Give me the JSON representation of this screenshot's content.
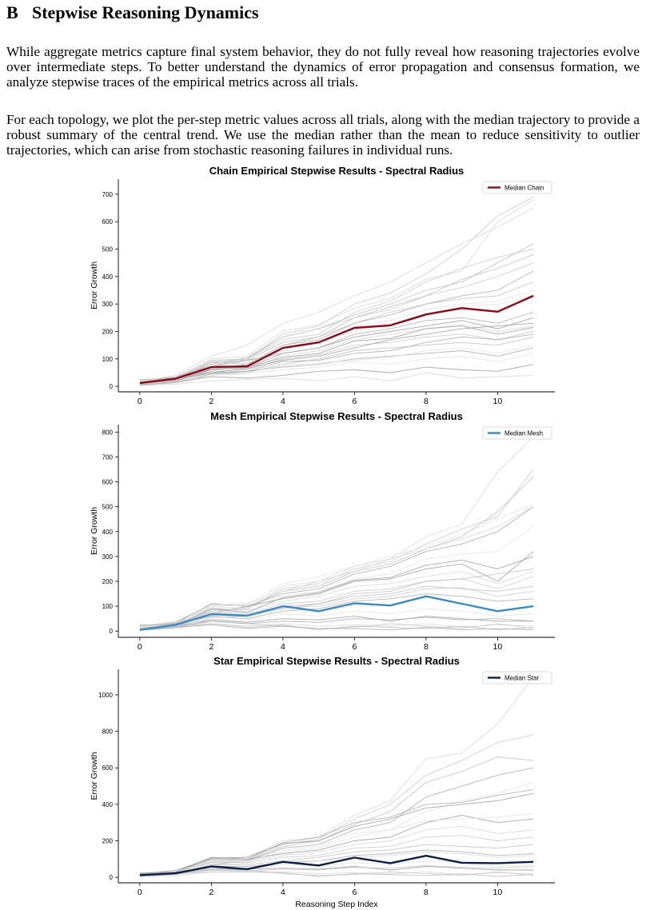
{
  "section": {
    "number": "B",
    "title": "Stepwise Reasoning Dynamics"
  },
  "paragraphs": [
    "While aggregate metrics capture final system behavior, they do not fully reveal how reasoning trajectories evolve over intermediate steps. To better understand the dynamics of error propagation and consensus formation, we analyze stepwise traces of the empirical metrics across all trials.",
    "For each topology, we plot the per-step metric values across all trials, along with the median trajectory to provide a robust summary of the central trend. We use the median rather than the mean to reduce sensitivity to outlier trajectories, which can arise from stochastic reasoning failures in individual runs."
  ],
  "chart_data": [
    {
      "type": "line",
      "title": "Chain Empirical Stepwise Results - Spectral Radius",
      "xlabel": "",
      "ylabel": "Error Growth",
      "x": [
        0,
        1,
        2,
        3,
        4,
        5,
        6,
        7,
        8,
        9,
        10,
        11
      ],
      "xticks": [
        0,
        2,
        4,
        6,
        8,
        10
      ],
      "xlim": [
        -0.6,
        11.6
      ],
      "yticks": [
        0,
        100,
        200,
        300,
        400,
        500,
        600,
        700
      ],
      "ylim": [
        -20,
        755
      ],
      "grid": false,
      "legend": "top-right",
      "median": {
        "name": "Median Chain",
        "color": "#8b0a1a",
        "values": [
          12,
          28,
          70,
          73,
          140,
          160,
          213,
          222,
          262,
          285,
          272,
          330
        ]
      },
      "trial_series": [
        [
          5,
          25,
          100,
          110,
          200,
          225,
          285,
          320,
          390,
          420,
          600,
          680
        ],
        [
          8,
          20,
          90,
          100,
          190,
          220,
          300,
          340,
          410,
          500,
          620,
          690
        ],
        [
          10,
          30,
          80,
          105,
          180,
          210,
          260,
          300,
          350,
          380,
          450,
          520
        ],
        [
          6,
          18,
          60,
          80,
          150,
          170,
          230,
          260,
          300,
          330,
          350,
          420
        ],
        [
          12,
          25,
          70,
          90,
          130,
          160,
          200,
          230,
          260,
          290,
          300,
          330
        ],
        [
          20,
          35,
          75,
          95,
          120,
          140,
          180,
          200,
          220,
          240,
          210,
          250
        ],
        [
          15,
          28,
          65,
          70,
          110,
          130,
          170,
          190,
          210,
          225,
          200,
          220
        ],
        [
          10,
          22,
          55,
          60,
          100,
          115,
          150,
          160,
          180,
          190,
          170,
          200
        ],
        [
          8,
          15,
          45,
          50,
          80,
          100,
          130,
          140,
          150,
          160,
          150,
          180
        ],
        [
          25,
          30,
          50,
          55,
          70,
          80,
          100,
          110,
          120,
          130,
          110,
          140
        ],
        [
          5,
          12,
          40,
          45,
          60,
          70,
          90,
          80,
          100,
          110,
          90,
          120
        ],
        [
          10,
          15,
          35,
          30,
          40,
          55,
          60,
          50,
          70,
          60,
          55,
          80
        ],
        [
          3,
          8,
          20,
          25,
          30,
          20,
          35,
          20,
          50,
          30,
          35,
          40
        ],
        [
          15,
          35,
          95,
          100,
          180,
          210,
          250,
          280,
          330,
          360,
          400,
          450
        ],
        [
          10,
          25,
          85,
          95,
          160,
          180,
          230,
          270,
          300,
          320,
          330,
          380
        ],
        [
          5,
          20,
          60,
          70,
          120,
          140,
          190,
          210,
          240,
          250,
          230,
          270
        ],
        [
          12,
          30,
          75,
          85,
          140,
          165,
          220,
          240,
          280,
          300,
          310,
          350
        ],
        [
          8,
          22,
          50,
          65,
          95,
          110,
          140,
          170,
          190,
          210,
          220,
          230
        ],
        [
          18,
          40,
          110,
          150,
          230,
          270,
          330,
          380,
          450,
          520,
          580,
          650
        ],
        [
          7,
          20,
          70,
          100,
          170,
          190,
          270,
          310,
          380,
          430,
          470,
          500
        ],
        [
          10,
          30,
          90,
          80,
          150,
          180,
          250,
          290,
          330,
          390,
          430,
          480
        ],
        [
          4,
          15,
          45,
          55,
          90,
          95,
          120,
          130,
          160,
          180,
          170,
          190
        ],
        [
          9,
          18,
          40,
          50,
          75,
          85,
          95,
          105,
          130,
          140,
          120,
          150
        ],
        [
          14,
          26,
          62,
          68,
          105,
          120,
          165,
          175,
          210,
          220,
          190,
          215
        ]
      ]
    },
    {
      "type": "line",
      "title": "Mesh Empirical Stepwise Results - Spectral Radius",
      "xlabel": "",
      "ylabel": "Error Growth",
      "x": [
        0,
        1,
        2,
        3,
        4,
        5,
        6,
        7,
        8,
        9,
        10,
        11
      ],
      "xticks": [
        0,
        2,
        4,
        6,
        8,
        10
      ],
      "xlim": [
        -0.6,
        11.6
      ],
      "yticks": [
        0,
        100,
        200,
        300,
        400,
        500,
        600,
        700,
        800
      ],
      "ylim": [
        -25,
        830
      ],
      "grid": false,
      "legend": "top-right",
      "median": {
        "name": "Median Mesh",
        "color": "#3a8bc4",
        "values": [
          5,
          25,
          68,
          62,
          100,
          80,
          112,
          103,
          140,
          110,
          80,
          100
        ]
      },
      "trial_series": [
        [
          5,
          40,
          100,
          90,
          180,
          200,
          260,
          290,
          380,
          430,
          640,
          780
        ],
        [
          8,
          35,
          90,
          85,
          170,
          190,
          250,
          280,
          350,
          410,
          460,
          650
        ],
        [
          10,
          30,
          80,
          95,
          160,
          180,
          240,
          270,
          330,
          380,
          480,
          620
        ],
        [
          6,
          25,
          70,
          100,
          150,
          170,
          230,
          260,
          320,
          350,
          400,
          500
        ],
        [
          12,
          28,
          60,
          90,
          140,
          160,
          210,
          230,
          290,
          310,
          320,
          420
        ],
        [
          20,
          32,
          110,
          100,
          130,
          150,
          200,
          210,
          250,
          270,
          200,
          320
        ],
        [
          15,
          30,
          95,
          80,
          120,
          140,
          180,
          190,
          220,
          240,
          190,
          240
        ],
        [
          10,
          22,
          85,
          70,
          110,
          120,
          160,
          170,
          200,
          210,
          170,
          220
        ],
        [
          8,
          18,
          70,
          60,
          90,
          110,
          140,
          150,
          180,
          170,
          160,
          180
        ],
        [
          25,
          28,
          60,
          50,
          80,
          90,
          120,
          130,
          150,
          140,
          120,
          130
        ],
        [
          5,
          15,
          50,
          40,
          70,
          60,
          80,
          70,
          90,
          80,
          60,
          70
        ],
        [
          10,
          20,
          45,
          35,
          50,
          45,
          60,
          40,
          60,
          50,
          40,
          40
        ],
        [
          3,
          10,
          30,
          20,
          30,
          20,
          25,
          20,
          30,
          15,
          25,
          20
        ],
        [
          15,
          25,
          40,
          30,
          20,
          10,
          15,
          30,
          20,
          10,
          30,
          10
        ],
        [
          10,
          20,
          30,
          15,
          25,
          5,
          20,
          15,
          10,
          20,
          5,
          15
        ],
        [
          5,
          15,
          25,
          10,
          20,
          10,
          10,
          5,
          15,
          5,
          10,
          5
        ],
        [
          12,
          30,
          100,
          105,
          190,
          220,
          260,
          300,
          340,
          390,
          450,
          510
        ],
        [
          8,
          22,
          90,
          75,
          135,
          155,
          205,
          215,
          265,
          285,
          250,
          300
        ],
        [
          18,
          40,
          105,
          110,
          160,
          200,
          240,
          290,
          330,
          370,
          420,
          500
        ],
        [
          7,
          20,
          55,
          60,
          95,
          100,
          130,
          140,
          170,
          175,
          140,
          160
        ],
        [
          10,
          30,
          75,
          65,
          100,
          110,
          150,
          160,
          200,
          210,
          230,
          250
        ],
        [
          4,
          15,
          40,
          30,
          40,
          35,
          50,
          45,
          55,
          45,
          50,
          40
        ]
      ]
    },
    {
      "type": "line",
      "title": "Star Empirical Stepwise Results - Spectral Radius",
      "xlabel": "Reasoning Step Index",
      "ylabel": "Error Growth",
      "x": [
        0,
        1,
        2,
        3,
        4,
        5,
        6,
        7,
        8,
        9,
        10,
        11
      ],
      "xticks": [
        0,
        2,
        4,
        6,
        8,
        10
      ],
      "xlim": [
        -0.6,
        11.6
      ],
      "yticks": [
        0,
        200,
        400,
        600,
        800,
        1000
      ],
      "ylim": [
        -30,
        1140
      ],
      "grid": false,
      "legend": "top-right",
      "median": {
        "name": "Median Star",
        "color": "#0b2046",
        "values": [
          12,
          22,
          60,
          45,
          85,
          65,
          108,
          78,
          118,
          80,
          78,
          85
        ]
      },
      "trial_series": [
        [
          5,
          30,
          100,
          110,
          200,
          220,
          340,
          420,
          650,
          680,
          840,
          1100
        ],
        [
          8,
          25,
          90,
          100,
          180,
          210,
          320,
          400,
          560,
          640,
          740,
          780
        ],
        [
          10,
          28,
          80,
          95,
          170,
          200,
          290,
          360,
          520,
          580,
          660,
          640
        ],
        [
          6,
          20,
          70,
          90,
          160,
          180,
          260,
          300,
          440,
          500,
          560,
          600
        ],
        [
          12,
          26,
          60,
          80,
          140,
          160,
          220,
          260,
          360,
          420,
          460,
          520
        ],
        [
          20,
          30,
          110,
          100,
          130,
          150,
          200,
          220,
          300,
          340,
          300,
          320
        ],
        [
          15,
          28,
          95,
          90,
          120,
          140,
          180,
          200,
          260,
          280,
          240,
          260
        ],
        [
          10,
          22,
          85,
          80,
          110,
          120,
          160,
          170,
          220,
          230,
          200,
          220
        ],
        [
          8,
          18,
          70,
          70,
          90,
          110,
          140,
          150,
          180,
          170,
          160,
          180
        ],
        [
          25,
          28,
          60,
          60,
          80,
          90,
          120,
          130,
          150,
          140,
          120,
          130
        ],
        [
          5,
          15,
          50,
          50,
          70,
          60,
          80,
          70,
          90,
          80,
          60,
          70
        ],
        [
          10,
          20,
          45,
          45,
          50,
          45,
          60,
          40,
          60,
          50,
          40,
          40
        ],
        [
          3,
          10,
          30,
          30,
          30,
          20,
          25,
          20,
          30,
          15,
          25,
          20
        ],
        [
          15,
          25,
          40,
          40,
          20,
          10,
          15,
          30,
          20,
          10,
          30,
          10
        ],
        [
          10,
          20,
          30,
          30,
          25,
          5,
          20,
          15,
          10,
          20,
          5,
          15
        ],
        [
          12,
          30,
          100,
          100,
          190,
          220,
          300,
          330,
          400,
          410,
          450,
          480
        ],
        [
          8,
          22,
          90,
          85,
          150,
          170,
          240,
          260,
          310,
          320,
          330,
          350
        ],
        [
          18,
          38,
          105,
          110,
          185,
          200,
          280,
          320,
          380,
          400,
          420,
          460
        ],
        [
          7,
          20,
          55,
          50,
          85,
          90,
          110,
          120,
          140,
          130,
          110,
          120
        ],
        [
          4,
          15,
          40,
          35,
          45,
          40,
          55,
          50,
          65,
          55,
          50,
          60
        ]
      ]
    }
  ]
}
